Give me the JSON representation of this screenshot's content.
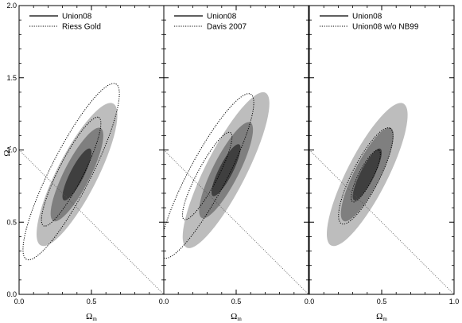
{
  "chart_data": {
    "type": "contour",
    "ylabel": "ΩΛ",
    "ylabel_main": "Ω",
    "ylabel_sub": "Λ",
    "xlabel_main": "Ω",
    "xlabel_sub": "m",
    "ylim": [
      0.0,
      2.0
    ],
    "yticks": [
      "0.0",
      "0.5",
      "1.0",
      "1.5",
      "2.0"
    ],
    "flat_universe_line": {
      "x": [
        0.0,
        1.0
      ],
      "y": [
        1.0,
        0.0
      ]
    },
    "fill_colors": [
      "#bdbdbd",
      "#7f7f7f",
      "#3f3f3f"
    ],
    "panels": [
      {
        "xlim": [
          0.0,
          1.0
        ],
        "xticks": [
          "0.0",
          "0.5",
          "0.0"
        ],
        "legend": [
          "Union08",
          "Riess Gold"
        ],
        "filled": {
          "center": [
            0.4,
            0.83
          ],
          "angle_deg": 63,
          "levels": [
            [
              0.55,
              0.14
            ],
            [
              0.36,
              0.09
            ],
            [
              0.2,
              0.048
            ]
          ]
        },
        "dotted": {
          "center": [
            0.36,
            0.85
          ],
          "angle_deg": 63,
          "levels": [
            [
              0.68,
              0.14
            ],
            [
              0.42,
              0.085
            ]
          ]
        }
      },
      {
        "xlim": [
          0.0,
          1.0
        ],
        "xticks": [
          "0.0",
          "0.5",
          "0.0"
        ],
        "legend": [
          "Union08",
          "Davis 2007"
        ],
        "filled": {
          "center": [
            0.43,
            0.86
          ],
          "angle_deg": 63,
          "levels": [
            [
              0.6,
              0.14
            ],
            [
              0.37,
              0.09
            ],
            [
              0.2,
              0.048
            ]
          ]
        },
        "dotted": {
          "center": [
            0.3,
            0.82
          ],
          "angle_deg": 62,
          "levels": [
            [
              0.64,
              0.13
            ],
            [
              0.34,
              0.07
            ]
          ]
        }
      },
      {
        "xlim": [
          0.0,
          1.0
        ],
        "xticks": [
          "0.0",
          "0.5",
          "1.0"
        ],
        "legend": [
          "Union08",
          "Union08 w/o NB99"
        ],
        "filled": {
          "center": [
            0.4,
            0.83
          ],
          "angle_deg": 63,
          "levels": [
            [
              0.55,
              0.14
            ],
            [
              0.36,
              0.09
            ],
            [
              0.2,
              0.048
            ]
          ]
        },
        "dotted": {
          "center": [
            0.39,
            0.82
          ],
          "angle_deg": 63,
          "levels": [
            [
              0.37,
              0.095
            ],
            [
              0.2,
              0.05
            ]
          ]
        }
      }
    ]
  }
}
